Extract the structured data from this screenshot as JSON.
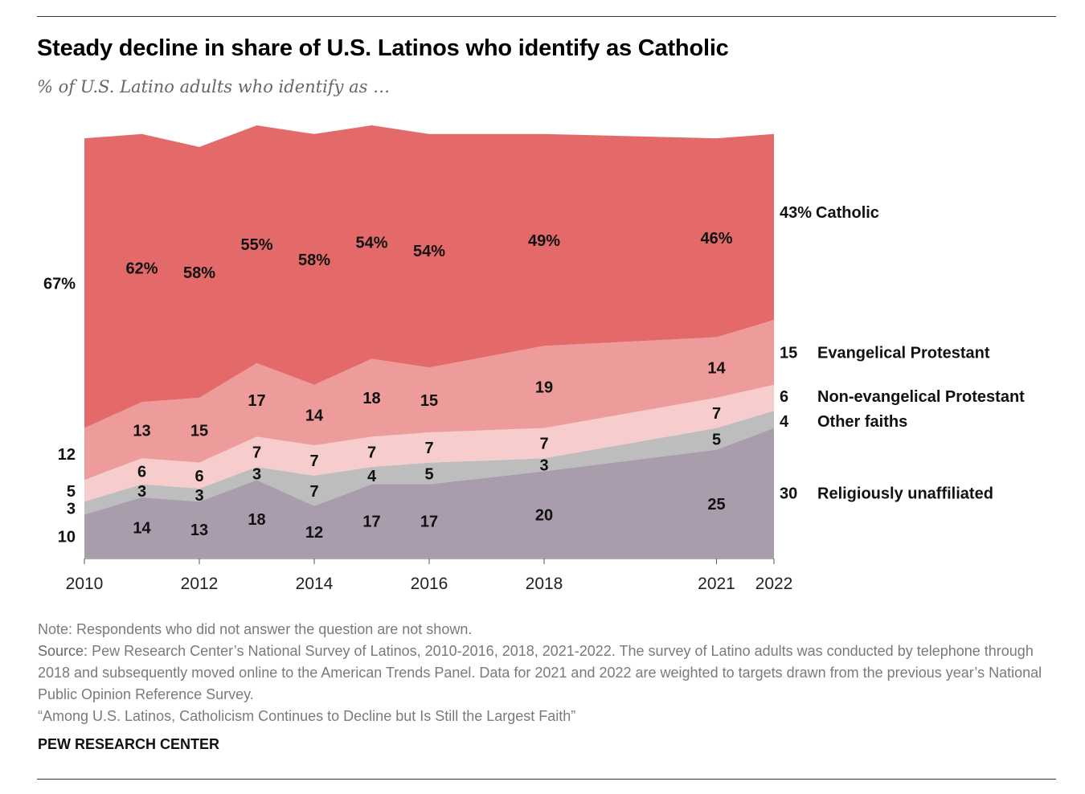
{
  "header": {
    "title": "Steady decline in share of U.S. Latinos who identify as Catholic",
    "subtitle": "% of U.S. Latino adults who identify as …"
  },
  "footer": {
    "note": "Note: Respondents who did not answer the question are not shown.",
    "source_label": "Source:",
    "source_text": "Pew Research Center’s National Survey of Latinos, 2010-2016, 2018, 2021-2022. The survey of Latino adults was conducted by telephone through 2018 and subsequently moved online to the American Trends Panel. Data for 2021 and 2022 are weighted to targets drawn from the previous year’s National Public Opinion Reference Survey.",
    "citation": "“Among U.S. Latinos, Catholicism Continues to Decline but Is Still the Largest Faith”",
    "brand": "PEW RESEARCH CENTER"
  },
  "chart_data": {
    "type": "area",
    "stacked": true,
    "title": "Steady decline in share of U.S. Latinos who identify as Catholic",
    "subtitle": "% of U.S. Latino adults who identify as …",
    "x": [
      2010,
      2011,
      2012,
      2013,
      2014,
      2015,
      2016,
      2018,
      2021,
      2022
    ],
    "xticks": [
      "2010",
      "2012",
      "2014",
      "2016",
      "2018",
      "2021",
      "2022"
    ],
    "ylim": [
      0,
      100
    ],
    "grid": false,
    "legend": "direct labels at right",
    "series": [
      {
        "name": "Religiously unaffiliated",
        "color": "#a99cad",
        "values": [
          10,
          14,
          13,
          18,
          12,
          17,
          17,
          20,
          25,
          30
        ],
        "labels": [
          "10",
          "14",
          "13",
          "18",
          "12",
          "17",
          "17",
          "20",
          "25",
          "30"
        ]
      },
      {
        "name": "Other faiths",
        "color": "#bdbdbd",
        "values": [
          3,
          3,
          3,
          3,
          7,
          4,
          5,
          3,
          5,
          4
        ],
        "labels": [
          "3",
          "3",
          "3",
          "3",
          "7",
          "4",
          "5",
          "3",
          "5",
          "4"
        ]
      },
      {
        "name": "Non-evangelical Protestant",
        "color": "#f7cccd",
        "values": [
          5,
          6,
          6,
          7,
          7,
          7,
          7,
          7,
          7,
          6
        ],
        "labels": [
          "5",
          "6",
          "6",
          "7",
          "7",
          "7",
          "7",
          "7",
          "7",
          "6"
        ]
      },
      {
        "name": "Evangelical Protestant",
        "color": "#ee9b9b",
        "values": [
          12,
          13,
          15,
          17,
          14,
          18,
          15,
          19,
          14,
          15
        ],
        "labels": [
          "12",
          "13",
          "15",
          "17",
          "14",
          "18",
          "15",
          "19",
          "14",
          "15"
        ]
      },
      {
        "name": "Catholic",
        "color": "#e46a6a",
        "values": [
          67,
          62,
          58,
          55,
          58,
          54,
          54,
          49,
          46,
          43
        ],
        "labels": [
          "67%",
          "62%",
          "58%",
          "55%",
          "58%",
          "54%",
          "54%",
          "49%",
          "46%",
          "43%"
        ]
      }
    ]
  }
}
